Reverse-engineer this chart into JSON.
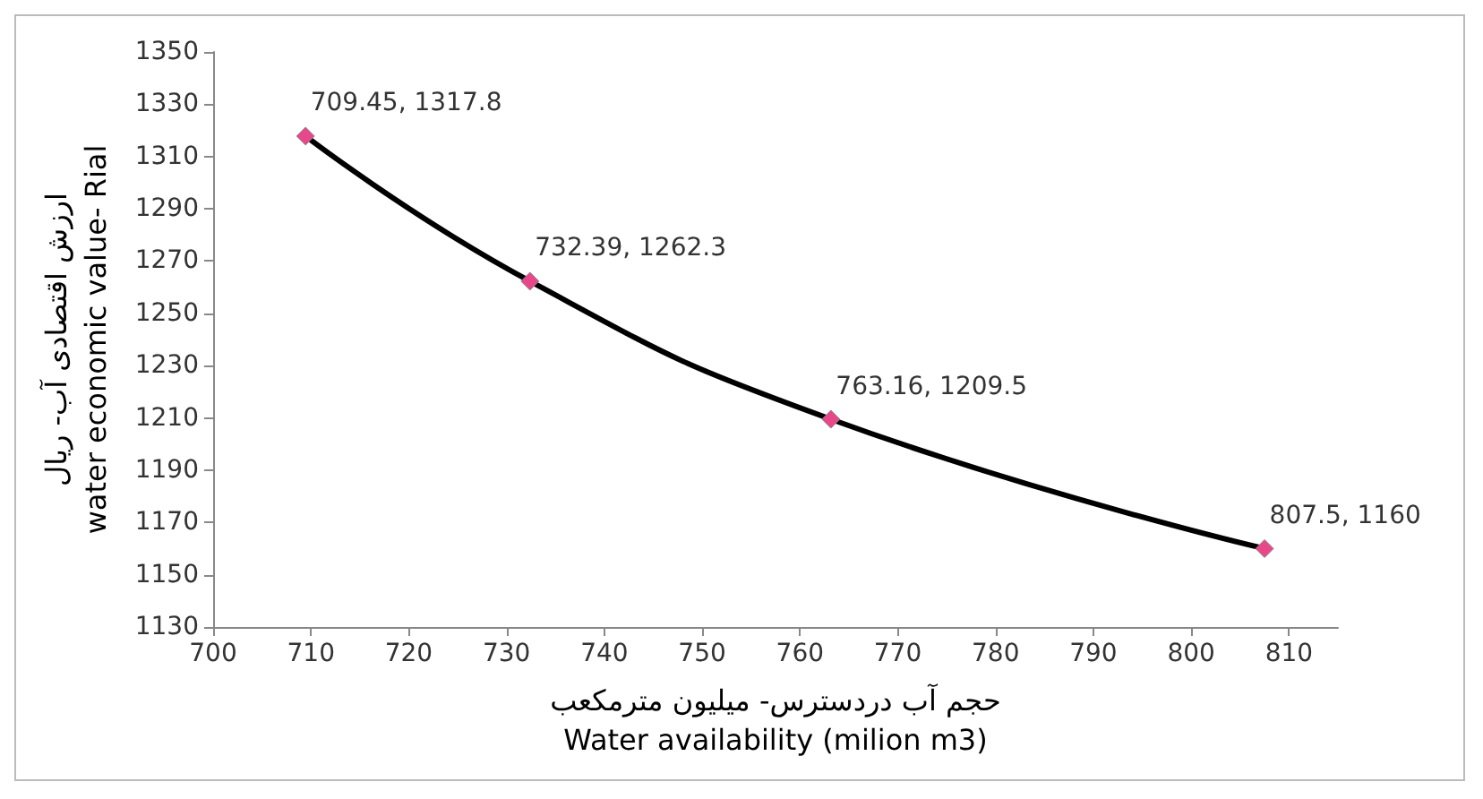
{
  "chart_data": {
    "type": "line",
    "xlabel": "حجم آب دردسترس- میلیون مترمکعب\nWater availability (milion m3)",
    "ylabel": "ارزش اقتصادی آب- ریال\nwater economic value- Rial",
    "x": [
      709.45,
      732.39,
      763.16,
      807.5
    ],
    "series": [
      {
        "color": "#000000",
        "colors": [
          "#e8488a",
          "#e8488a",
          "#e8488a",
          "#e8488a"
        ],
        "values": [
          1317.8,
          1262.3,
          1209.5,
          1160
        ],
        "value_labels": [
          "709.45, 1317.8",
          "732.39, 1262.3",
          "763.16, 1209.5",
          "807.5, 1160"
        ]
      }
    ],
    "xlim": [
      700,
      815
    ],
    "xticks": [
      700,
      710,
      720,
      730,
      740,
      750,
      760,
      770,
      780,
      790,
      800,
      810
    ],
    "ylim": [
      1130,
      1350
    ],
    "yticks": [
      1130,
      1150,
      1170,
      1190,
      1210,
      1230,
      1250,
      1270,
      1290,
      1310,
      1330,
      1350
    ],
    "marker": "diamond",
    "grid": false
  }
}
